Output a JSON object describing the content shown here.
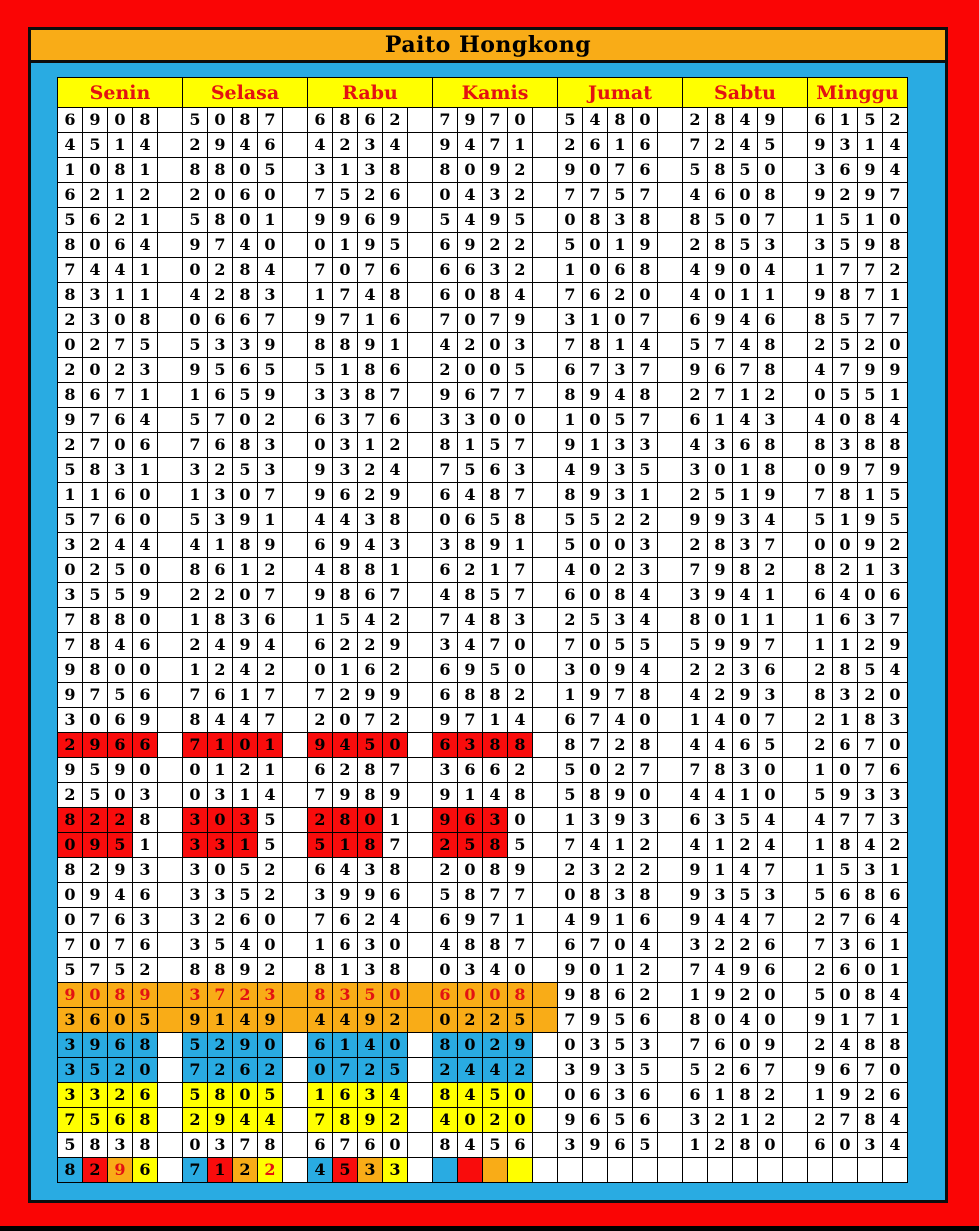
{
  "title": "Paito Hongkong",
  "days": [
    "Senin",
    "Selasa",
    "Rabu",
    "Kamis",
    "Jumat",
    "Sabtu",
    "Minggu"
  ],
  "colors": {
    "frame_red": "#FA0505",
    "panel_blue": "#29ABE2",
    "title_bg": "#F9AC17",
    "header_bg": "#FFFF00",
    "header_text_red": "#E31212",
    "cell_red": "#F90C0C",
    "cell_orange": "#F9AC17",
    "cell_yellow": "#FFFF00",
    "cell_blue": "#29ABE2"
  },
  "rainbow_colors": [
    "blue",
    "red",
    "orange",
    "yellow"
  ],
  "rainbow_red_text": [
    [
      0,
      2
    ],
    [
      1,
      3
    ]
  ],
  "rows": [
    {
      "c": [
        "6908",
        "5087",
        "6862",
        "7970",
        "5480",
        "2849",
        "6152"
      ],
      "s": "plain"
    },
    {
      "c": [
        "4514",
        "2946",
        "4234",
        "9471",
        "2616",
        "7245",
        "9314"
      ],
      "s": "plain"
    },
    {
      "c": [
        "1081",
        "8805",
        "3138",
        "8092",
        "9076",
        "5850",
        "3694"
      ],
      "s": "plain"
    },
    {
      "c": [
        "6212",
        "2060",
        "7526",
        "0432",
        "7757",
        "4608",
        "9297"
      ],
      "s": "plain"
    },
    {
      "c": [
        "5621",
        "5801",
        "9969",
        "5495",
        "0838",
        "8507",
        "1510"
      ],
      "s": "plain"
    },
    {
      "c": [
        "8064",
        "9740",
        "0195",
        "6922",
        "5019",
        "2853",
        "3598"
      ],
      "s": "plain"
    },
    {
      "c": [
        "7441",
        "0284",
        "7076",
        "6632",
        "1068",
        "4904",
        "1772"
      ],
      "s": "plain"
    },
    {
      "c": [
        "8311",
        "4283",
        "1748",
        "6084",
        "7620",
        "4011",
        "9871"
      ],
      "s": "plain"
    },
    {
      "c": [
        "2308",
        "0667",
        "9716",
        "7079",
        "3107",
        "6946",
        "8577"
      ],
      "s": "plain"
    },
    {
      "c": [
        "0275",
        "5339",
        "8891",
        "4203",
        "7814",
        "5748",
        "2520"
      ],
      "s": "plain"
    },
    {
      "c": [
        "2023",
        "9565",
        "5186",
        "2005",
        "6737",
        "9678",
        "4799"
      ],
      "s": "plain"
    },
    {
      "c": [
        "8671",
        "1659",
        "3387",
        "9677",
        "8948",
        "2712",
        "0551"
      ],
      "s": "plain"
    },
    {
      "c": [
        "9764",
        "5702",
        "6376",
        "3300",
        "1057",
        "6143",
        "4084"
      ],
      "s": "plain"
    },
    {
      "c": [
        "2706",
        "7683",
        "0312",
        "8157",
        "9133",
        "4368",
        "8388"
      ],
      "s": "plain"
    },
    {
      "c": [
        "5831",
        "3253",
        "9324",
        "7563",
        "4935",
        "3018",
        "0979"
      ],
      "s": "plain"
    },
    {
      "c": [
        "1160",
        "1307",
        "9629",
        "6487",
        "8931",
        "2519",
        "7815"
      ],
      "s": "plain"
    },
    {
      "c": [
        "5760",
        "5391",
        "4438",
        "0658",
        "5522",
        "9934",
        "5195"
      ],
      "s": "plain"
    },
    {
      "c": [
        "3244",
        "4189",
        "6943",
        "3891",
        "5003",
        "2837",
        "0092"
      ],
      "s": "plain"
    },
    {
      "c": [
        "0250",
        "8612",
        "4881",
        "6217",
        "4023",
        "7982",
        "8213"
      ],
      "s": "plain"
    },
    {
      "c": [
        "3559",
        "2207",
        "9867",
        "4857",
        "6084",
        "3941",
        "6406"
      ],
      "s": "plain"
    },
    {
      "c": [
        "7880",
        "1836",
        "1542",
        "7483",
        "2534",
        "8011",
        "1637"
      ],
      "s": "plain"
    },
    {
      "c": [
        "7846",
        "2494",
        "6229",
        "3470",
        "7055",
        "5997",
        "1129"
      ],
      "s": "plain"
    },
    {
      "c": [
        "9800",
        "1242",
        "0162",
        "6950",
        "3094",
        "2236",
        "2854"
      ],
      "s": "plain"
    },
    {
      "c": [
        "9756",
        "7617",
        "7299",
        "6882",
        "1978",
        "4293",
        "8320"
      ],
      "s": "plain"
    },
    {
      "c": [
        "3069",
        "8447",
        "2072",
        "9714",
        "6740",
        "1407",
        "2183"
      ],
      "s": "plain"
    },
    {
      "c": [
        "2966",
        "7101",
        "9450",
        "6388",
        "8728",
        "4465",
        "2670"
      ],
      "s": "red4"
    },
    {
      "c": [
        "9590",
        "0121",
        "6287",
        "3662",
        "5027",
        "7830",
        "1076"
      ],
      "s": "plain"
    },
    {
      "c": [
        "2503",
        "0314",
        "7989",
        "9148",
        "5890",
        "4410",
        "5933"
      ],
      "s": "plain"
    },
    {
      "c": [
        "8228",
        "3035",
        "2801",
        "9630",
        "1393",
        "6354",
        "4773"
      ],
      "s": "red3"
    },
    {
      "c": [
        "0951",
        "3315",
        "5187",
        "2585",
        "7412",
        "4124",
        "1842"
      ],
      "s": "red3"
    },
    {
      "c": [
        "8293",
        "3052",
        "6438",
        "2089",
        "2322",
        "9147",
        "1531"
      ],
      "s": "plain"
    },
    {
      "c": [
        "0946",
        "3352",
        "3996",
        "5877",
        "0838",
        "9353",
        "5686"
      ],
      "s": "plain"
    },
    {
      "c": [
        "0763",
        "3260",
        "7624",
        "6971",
        "4916",
        "9447",
        "2764"
      ],
      "s": "plain"
    },
    {
      "c": [
        "7076",
        "3540",
        "1630",
        "4887",
        "6704",
        "3226",
        "7361"
      ],
      "s": "plain"
    },
    {
      "c": [
        "5752",
        "8892",
        "8138",
        "0340",
        "9012",
        "7496",
        "2601"
      ],
      "s": "plain"
    },
    {
      "c": [
        "9089",
        "3723",
        "8350",
        "6008",
        "9862",
        "1920",
        "5084"
      ],
      "s": "orange_red"
    },
    {
      "c": [
        "3605",
        "9149",
        "4492",
        "0225",
        "7956",
        "8040",
        "9171"
      ],
      "s": "orange"
    },
    {
      "c": [
        "3968",
        "5290",
        "6140",
        "8029",
        "0353",
        "7609",
        "2488"
      ],
      "s": "blue"
    },
    {
      "c": [
        "3520",
        "7262",
        "0725",
        "2442",
        "3935",
        "5267",
        "9670"
      ],
      "s": "blue"
    },
    {
      "c": [
        "3326",
        "5805",
        "1634",
        "8450",
        "0636",
        "6182",
        "1926"
      ],
      "s": "yellow"
    },
    {
      "c": [
        "7568",
        "2944",
        "7892",
        "4020",
        "9656",
        "3212",
        "2784"
      ],
      "s": "yellow"
    },
    {
      "c": [
        "5838",
        "0378",
        "6760",
        "8456",
        "3965",
        "1280",
        "6034"
      ],
      "s": "plain"
    },
    {
      "c": [
        "8296",
        "7122",
        "4533",
        "",
        "",
        "",
        ""
      ],
      "s": "rainbow"
    }
  ]
}
